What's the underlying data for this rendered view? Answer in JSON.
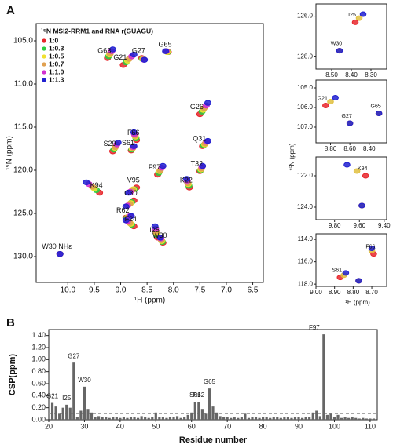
{
  "chart_data": [
    {
      "type": "scatter",
      "panel": "A",
      "legend_title": "¹⁵N MSI2-RRM1 and RNA r(GUAGU)",
      "legend": "upper left",
      "x_label": "¹H (ppm)",
      "y_label": "¹⁵N (ppm)",
      "xlim": [
        10.6,
        6.3
      ],
      "ylim": [
        133,
        103
      ],
      "xticks": [
        {
          "value": 10,
          "label": "10.0"
        },
        9.5,
        {
          "value": 9,
          "label": "9.0"
        },
        8.5,
        {
          "value": 8,
          "label": "8.0"
        },
        7.5,
        {
          "value": 7,
          "label": "7.0"
        },
        6.5
      ],
      "yticks": [
        {
          "value": 105,
          "label": "105.0"
        },
        {
          "value": 110,
          "label": "110.0"
        },
        {
          "value": 115,
          "label": "115.0"
        },
        {
          "value": 120,
          "label": "120.0"
        },
        {
          "value": 125,
          "label": "125.0"
        },
        {
          "value": 130,
          "label": "130.0"
        }
      ],
      "peak_labels": [
        "G63",
        "G21",
        "G27",
        "G65",
        "G26",
        "F66",
        "S29",
        "S61",
        "Q31",
        "T32",
        "F97",
        "K22",
        "K94",
        "V95",
        "C30",
        "R62",
        "F24",
        "I25",
        "W30",
        "W30 NHε"
      ],
      "series": [
        {
          "name": "1:0",
          "color": "#e8262b",
          "x": [
            9.25,
            8.95,
            8.6,
            8.1,
            7.5,
            8.7,
            9.15,
            8.8,
            7.45,
            7.5,
            8.3,
            7.7,
            9.4,
            8.7,
            8.75,
            8.9,
            8.75,
            8.3,
            8.2,
            10.15
          ],
          "values": [
            107.0,
            107.8,
            107.0,
            106.3,
            113.5,
            116.5,
            117.8,
            117.7,
            117.2,
            120.1,
            120.5,
            122.0,
            122.6,
            122.0,
            123.5,
            125.5,
            126.5,
            127.8,
            128.4,
            129.7
          ]
        },
        {
          "name": "1:0.3",
          "color": "#2ecc40",
          "x": [
            9.23,
            8.9,
            8.59,
            8.11,
            7.46,
            8.71,
            9.13,
            8.79,
            7.43,
            7.49,
            8.28,
            7.71,
            9.46,
            8.74,
            8.79,
            8.88,
            8.79,
            8.31,
            8.21,
            10.15
          ],
          "values": [
            106.8,
            107.5,
            107.1,
            106.3,
            113.2,
            116.3,
            117.6,
            117.6,
            117.1,
            120.0,
            120.3,
            121.8,
            122.3,
            122.2,
            123.7,
            125.5,
            126.3,
            127.5,
            128.3,
            129.7
          ]
        },
        {
          "name": "1:0.5",
          "color": "#f0e030",
          "x": [
            9.21,
            8.87,
            8.58,
            8.12,
            7.44,
            8.72,
            9.11,
            8.78,
            7.41,
            7.48,
            8.26,
            7.72,
            9.5,
            8.76,
            8.81,
            8.86,
            8.81,
            8.32,
            8.22,
            10.15
          ],
          "values": [
            106.6,
            107.3,
            107.1,
            106.3,
            113.0,
            116.1,
            117.4,
            117.5,
            117.0,
            119.9,
            120.1,
            121.6,
            122.1,
            122.2,
            123.8,
            125.4,
            126.2,
            127.3,
            128.2,
            129.7
          ]
        },
        {
          "name": "1:0.7",
          "color": "#e0a050",
          "x": [
            9.2,
            8.84,
            8.57,
            8.13,
            7.42,
            8.73,
            9.1,
            8.77,
            7.4,
            7.47,
            8.25,
            7.73,
            9.54,
            8.78,
            8.83,
            8.85,
            8.83,
            8.33,
            8.23,
            10.15
          ],
          "values": [
            106.5,
            107.1,
            107.1,
            106.2,
            112.8,
            116.0,
            117.3,
            117.4,
            116.9,
            119.8,
            120.0,
            121.5,
            121.9,
            122.3,
            123.9,
            125.4,
            126.1,
            127.1,
            128.1,
            129.7
          ]
        },
        {
          "name": "1:1.0",
          "color": "#d030d0",
          "x": [
            9.17,
            8.79,
            8.56,
            8.14,
            7.38,
            8.74,
            9.07,
            8.76,
            7.37,
            7.46,
            8.22,
            7.74,
            9.6,
            8.82,
            8.87,
            8.82,
            8.87,
            8.34,
            8.24,
            10.15
          ],
          "values": [
            106.2,
            106.8,
            107.2,
            106.2,
            112.5,
            115.8,
            117.0,
            117.3,
            116.7,
            119.6,
            119.7,
            121.2,
            121.6,
            122.5,
            124.1,
            125.3,
            125.9,
            126.8,
            127.9,
            129.7
          ]
        },
        {
          "name": "1:1.3",
          "color": "#2020d0",
          "x": [
            9.15,
            8.75,
            8.55,
            8.15,
            7.35,
            8.75,
            9.05,
            8.75,
            7.35,
            7.45,
            8.2,
            7.75,
            9.65,
            8.85,
            8.9,
            8.8,
            8.9,
            8.35,
            8.25,
            10.15
          ],
          "values": [
            106.0,
            106.6,
            107.2,
            106.2,
            112.2,
            115.6,
            116.8,
            117.2,
            116.6,
            119.5,
            119.5,
            121.0,
            121.4,
            122.6,
            124.2,
            125.3,
            125.8,
            126.5,
            127.8,
            129.7
          ]
        }
      ]
    },
    {
      "type": "scatter",
      "xlim": [
        8.58,
        8.22
      ],
      "ylim": [
        128.6,
        125.4
      ],
      "xticks": [
        {
          "value": 8.5,
          "label": "8.50"
        },
        {
          "value": 8.4,
          "label": "8.40"
        },
        {
          "value": 8.3,
          "label": "8.30"
        }
      ],
      "yticks": [
        {
          "value": 126,
          "label": "126.0"
        },
        {
          "value": 128,
          "label": "128.0"
        }
      ],
      "peak_labels": [
        "I25",
        "W30"
      ],
      "series": [
        {
          "color": "#e8262b",
          "x": [
            8.38,
            8.46
          ],
          "values": [
            126.3,
            127.7
          ]
        },
        {
          "color": "#e0c040",
          "x": [
            8.36,
            8.46
          ],
          "values": [
            126.1,
            127.7
          ]
        },
        {
          "color": "#2020d0",
          "x": [
            8.34,
            8.46
          ],
          "values": [
            125.9,
            127.7
          ]
        }
      ]
    },
    {
      "type": "scatter",
      "xlim": [
        8.95,
        8.22
      ],
      "ylim": [
        107.8,
        104.6
      ],
      "y_label": "¹⁵N (ppm)",
      "xticks": [
        {
          "value": 8.8,
          "label": "8.80"
        },
        {
          "value": 8.6,
          "label": "8.60"
        },
        {
          "value": 8.4,
          "label": "8.40"
        }
      ],
      "yticks": [
        {
          "value": 105,
          "label": "105.0"
        },
        {
          "value": 106,
          "label": "106.0"
        },
        {
          "value": 107,
          "label": "107.0"
        }
      ],
      "peak_labels": [
        "G21",
        "G27",
        "G65"
      ],
      "series": [
        {
          "color": "#e8262b",
          "x": [
            8.85,
            8.6,
            8.3
          ],
          "values": [
            105.9,
            106.8,
            106.3
          ]
        },
        {
          "color": "#e0c040",
          "x": [
            8.8,
            8.6,
            8.3
          ],
          "values": [
            105.7,
            106.8,
            106.3
          ]
        },
        {
          "color": "#2020d0",
          "x": [
            8.75,
            8.6,
            8.3
          ],
          "values": [
            105.5,
            106.8,
            106.3
          ]
        }
      ]
    },
    {
      "type": "scatter",
      "xlim": [
        9.95,
        9.38
      ],
      "ylim": [
        124.8,
        120.8
      ],
      "xticks": [
        {
          "value": 9.8,
          "label": "9.80"
        },
        {
          "value": 9.6,
          "label": "9.60"
        },
        {
          "value": 9.4,
          "label": "9.40"
        }
      ],
      "yticks": [
        {
          "value": 122,
          "label": "122.0"
        },
        {
          "value": 124,
          "label": "124.0"
        }
      ],
      "peak_labels": [
        "K94",
        null
      ],
      "series": [
        {
          "color": "#e8262b",
          "x": [
            9.55,
            9.58
          ],
          "values": [
            122.0,
            123.9
          ]
        },
        {
          "color": "#e0c040",
          "x": [
            9.62,
            9.58
          ],
          "values": [
            121.7,
            123.9
          ]
        },
        {
          "color": "#2020d0",
          "x": [
            9.7,
            9.58
          ],
          "values": [
            121.3,
            123.9
          ]
        }
      ]
    },
    {
      "type": "scatter",
      "xlim": [
        9.0,
        8.62
      ],
      "ylim": [
        118.2,
        113.5
      ],
      "x_label": "¹H (ppm)",
      "xticks": [
        {
          "value": 9,
          "label": "9.00"
        },
        {
          "value": 8.9,
          "label": "8.90"
        },
        {
          "value": 8.8,
          "label": "8.80"
        },
        {
          "value": 8.7,
          "label": "8.70"
        }
      ],
      "yticks": [
        {
          "value": 114,
          "label": "114.0"
        },
        {
          "value": 116,
          "label": "116.0"
        },
        {
          "value": 118,
          "label": "118.0"
        }
      ],
      "peak_labels": [
        "S61",
        "F66",
        null
      ],
      "series": [
        {
          "color": "#e8262b",
          "x": [
            8.87,
            8.69,
            8.77
          ],
          "values": [
            117.4,
            115.3,
            117.7
          ]
        },
        {
          "color": "#e0c040",
          "x": [
            8.85,
            8.7,
            8.77
          ],
          "values": [
            117.2,
            115.0,
            117.7
          ]
        },
        {
          "color": "#2020d0",
          "x": [
            8.84,
            8.7,
            8.77
          ],
          "values": [
            117.0,
            114.8,
            117.7
          ]
        }
      ]
    },
    {
      "type": "bar",
      "panel": "B",
      "x_label": "Residue number",
      "y_label": "CSP(ppm)",
      "color": "#666666",
      "xlim": [
        20,
        112
      ],
      "ylim": [
        0,
        1.5
      ],
      "xticks": [
        20,
        30,
        40,
        50,
        60,
        70,
        80,
        90,
        100,
        110
      ],
      "yticks": [
        {
          "value": 0,
          "label": "0.00"
        },
        {
          "value": 0.2,
          "label": "0.20"
        },
        {
          "value": 0.4,
          "label": "0.40"
        },
        {
          "value": 0.6,
          "label": "0.60"
        },
        {
          "value": 0.8,
          "label": "0.80"
        },
        {
          "value": 1.0,
          "label": "1.00"
        },
        {
          "value": 1.2,
          "label": "1.20"
        },
        {
          "value": 1.4,
          "label": "1.40"
        }
      ],
      "reference_line": 0.1,
      "x": [
        21,
        22,
        23,
        24,
        25,
        26,
        27,
        28,
        29,
        30,
        31,
        32,
        33,
        34,
        35,
        36,
        37,
        38,
        39,
        40,
        41,
        42,
        43,
        44,
        45,
        46,
        47,
        48,
        49,
        50,
        51,
        52,
        53,
        54,
        55,
        56,
        57,
        58,
        59,
        60,
        61,
        62,
        63,
        64,
        65,
        66,
        67,
        68,
        69,
        70,
        71,
        72,
        73,
        74,
        75,
        76,
        77,
        78,
        79,
        80,
        81,
        82,
        83,
        84,
        85,
        86,
        87,
        88,
        89,
        90,
        91,
        92,
        93,
        94,
        95,
        96,
        97,
        98,
        99,
        100,
        101,
        102,
        103,
        104,
        105,
        106,
        107,
        108,
        109,
        110,
        111
      ],
      "values": [
        0.28,
        0.22,
        0.1,
        0.2,
        0.25,
        0.2,
        0.95,
        0.05,
        0.15,
        0.55,
        0.18,
        0.12,
        0.05,
        0.06,
        0.04,
        0.05,
        0.03,
        0.04,
        0.05,
        0.03,
        0.04,
        0.03,
        0.05,
        0.04,
        0.03,
        0.06,
        0.04,
        0.03,
        0.05,
        0.12,
        0.05,
        0.04,
        0.03,
        0.05,
        0.04,
        0.06,
        0.03,
        0.05,
        0.08,
        0.12,
        0.3,
        0.3,
        0.18,
        0.1,
        0.52,
        0.22,
        0.12,
        0.06,
        0.05,
        0.04,
        0.03,
        0.05,
        0.03,
        0.04,
        0.1,
        0.03,
        0.04,
        0.05,
        0.03,
        0.04,
        0.05,
        0.03,
        0.04,
        0.05,
        0.03,
        0.04,
        0.05,
        0.03,
        0.04,
        0.05,
        0.03,
        0.04,
        0.05,
        0.12,
        0.15,
        0.06,
        1.42,
        0.08,
        0.1,
        0.05,
        0.08,
        0.03,
        0.04,
        0.03,
        0.05,
        0.03,
        0.02,
        0.03,
        0.02,
        0.02,
        0.02
      ],
      "annotations": [
        {
          "text": "G21",
          "x": 21
        },
        {
          "text": "I25",
          "x": 25
        },
        {
          "text": "G27",
          "x": 27
        },
        {
          "text": "W30",
          "x": 30
        },
        {
          "text": "S61",
          "x": 61
        },
        {
          "text": "R62",
          "x": 62
        },
        {
          "text": "G65",
          "x": 65
        },
        {
          "text": "F97",
          "x": 97
        }
      ]
    }
  ]
}
